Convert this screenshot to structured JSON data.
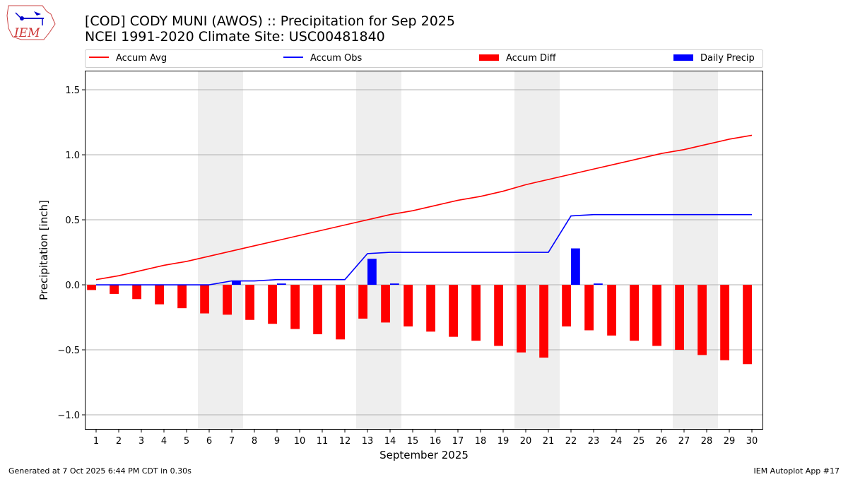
{
  "header": {
    "title": "[COD] CODY MUNI (AWOS) :: Precipitation for Sep 2025",
    "subtitle": "NCEI 1991-2020 Climate Site: USC00481840",
    "logo_text": "IEM"
  },
  "footer": {
    "generated": "Generated at 7 Oct 2025 6:44 PM CDT in 0.30s",
    "app": "IEM Autoplot App #17"
  },
  "chart_data": {
    "type": "bar",
    "title": "[COD] CODY MUNI (AWOS) :: Precipitation for Sep 2025",
    "xlabel": "September 2025",
    "ylabel": "Precipitation [inch]",
    "ylim": [
      -1.114,
      1.647
    ],
    "xlim": [
      0.5,
      30.5
    ],
    "yticks": [
      -1.0,
      -0.5,
      0.0,
      0.5,
      1.0,
      1.5
    ],
    "ytick_labels": [
      "−1.0",
      "−0.5",
      "0.0",
      "0.5",
      "1.0",
      "1.5"
    ],
    "grid": "horizontal",
    "legend_placement": "top, outside",
    "weekend_shading": [
      [
        6,
        7
      ],
      [
        13,
        14
      ],
      [
        20,
        21
      ],
      [
        27,
        28
      ]
    ],
    "x": [
      1,
      2,
      3,
      4,
      5,
      6,
      7,
      8,
      9,
      10,
      11,
      12,
      13,
      14,
      15,
      16,
      17,
      18,
      19,
      20,
      21,
      22,
      23,
      24,
      25,
      26,
      27,
      28,
      29,
      30
    ],
    "series": [
      {
        "name": "Accum Avg",
        "type": "line",
        "color": "#ff0000",
        "values": [
          0.04,
          0.07,
          0.11,
          0.15,
          0.18,
          0.22,
          0.26,
          0.3,
          0.34,
          0.38,
          0.42,
          0.46,
          0.5,
          0.54,
          0.57,
          0.61,
          0.65,
          0.68,
          0.72,
          0.77,
          0.81,
          0.85,
          0.89,
          0.93,
          0.97,
          1.01,
          1.04,
          1.08,
          1.12,
          1.15
        ]
      },
      {
        "name": "Accum Obs",
        "type": "line",
        "color": "#0000ff",
        "values": [
          0,
          0,
          0,
          0,
          0,
          0,
          0.03,
          0.03,
          0.04,
          0.04,
          0.04,
          0.04,
          0.24,
          0.25,
          0.25,
          0.25,
          0.25,
          0.25,
          0.25,
          0.25,
          0.25,
          0.53,
          0.54,
          0.54,
          0.54,
          0.54,
          0.54,
          0.54,
          0.54,
          0.54
        ]
      },
      {
        "name": "Accum Diff",
        "type": "bar",
        "color": "#ff0000",
        "values": [
          -0.04,
          -0.07,
          -0.11,
          -0.15,
          -0.18,
          -0.22,
          -0.23,
          -0.27,
          -0.3,
          -0.34,
          -0.38,
          -0.42,
          -0.26,
          -0.29,
          -0.32,
          -0.36,
          -0.4,
          -0.43,
          -0.47,
          -0.52,
          -0.56,
          -0.32,
          -0.35,
          -0.39,
          -0.43,
          -0.47,
          -0.5,
          -0.54,
          -0.58,
          -0.61
        ]
      },
      {
        "name": "Daily Precip",
        "type": "bar",
        "color": "#0000ff",
        "values": [
          0,
          0,
          0,
          0,
          0,
          0,
          0.03,
          0,
          0.01,
          0,
          0,
          0,
          0.2,
          0.01,
          0,
          0,
          0,
          0,
          0,
          0,
          0,
          0.28,
          0.01,
          0,
          0,
          0,
          0,
          0,
          0,
          0
        ]
      }
    ]
  }
}
